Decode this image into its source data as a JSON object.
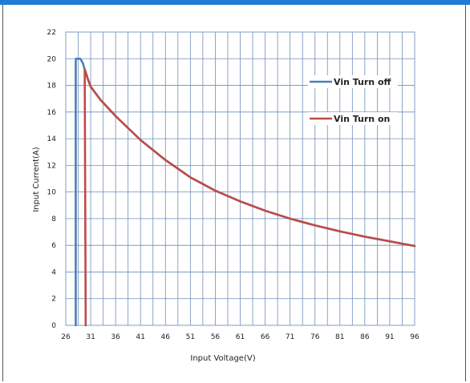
{
  "chart_data": {
    "type": "line",
    "title": "",
    "xlabel": "Input Voltage(V)",
    "ylabel": "Input Current(A)",
    "xlim": [
      26,
      96
    ],
    "ylim": [
      0,
      22
    ],
    "x_ticks": [
      26,
      31,
      36,
      41,
      46,
      51,
      56,
      61,
      66,
      71,
      76,
      81,
      86,
      91,
      96
    ],
    "y_ticks": [
      0,
      2,
      4,
      6,
      8,
      10,
      12,
      14,
      16,
      18,
      20,
      22
    ],
    "x_grid_step": 2.5,
    "y_grid_step": 2,
    "grid": true,
    "legend_position": "top-right",
    "series": [
      {
        "name": "Vin Turn off",
        "color": "#4a7ebb",
        "points": [
          [
            28.0,
            0
          ],
          [
            28.0,
            19.8
          ],
          [
            28.05,
            20.0
          ],
          [
            28.9,
            20.0
          ],
          [
            29.4,
            19.7
          ],
          [
            29.8,
            19.2
          ],
          [
            30.5,
            18.4
          ],
          [
            31,
            17.9
          ],
          [
            33,
            16.9
          ],
          [
            36,
            15.7
          ],
          [
            41,
            13.9
          ],
          [
            46,
            12.4
          ],
          [
            51,
            11.1
          ],
          [
            56,
            10.1
          ],
          [
            61,
            9.3
          ],
          [
            66,
            8.6
          ],
          [
            71,
            8.0
          ],
          [
            76,
            7.5
          ],
          [
            81,
            7.05
          ],
          [
            86,
            6.65
          ],
          [
            91,
            6.3
          ],
          [
            96,
            5.95
          ]
        ]
      },
      {
        "name": "Vin Turn on",
        "color": "#be4b48",
        "points": [
          [
            30.0,
            0
          ],
          [
            29.8,
            19.2
          ],
          [
            30.5,
            18.4
          ],
          [
            31,
            17.9
          ],
          [
            33,
            16.9
          ],
          [
            36,
            15.7
          ],
          [
            41,
            13.9
          ],
          [
            46,
            12.4
          ],
          [
            51,
            11.1
          ],
          [
            56,
            10.1
          ],
          [
            61,
            9.3
          ],
          [
            66,
            8.6
          ],
          [
            71,
            8.0
          ],
          [
            76,
            7.5
          ],
          [
            81,
            7.05
          ],
          [
            86,
            6.65
          ],
          [
            91,
            6.3
          ],
          [
            96,
            5.95
          ]
        ]
      }
    ]
  }
}
